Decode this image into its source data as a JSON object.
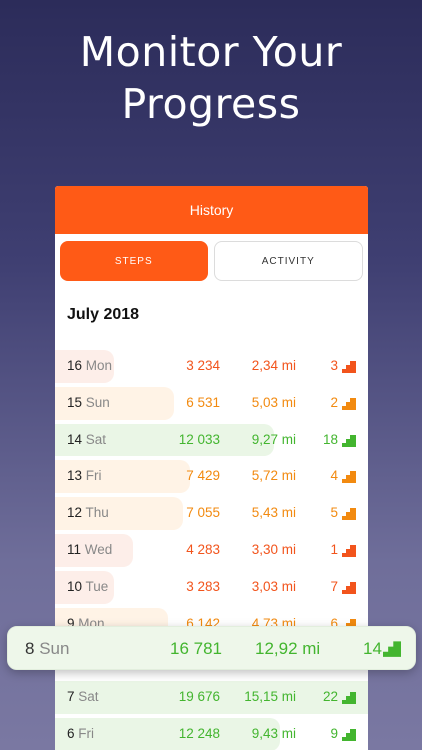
{
  "headline": {
    "line1": "Monitor Your",
    "line2": "Progress"
  },
  "appbar": {
    "title": "History"
  },
  "tabs": [
    {
      "label": "STEPS",
      "active": true
    },
    {
      "label": "ACTIVITY",
      "active": false
    }
  ],
  "month": "July 2018",
  "colors": {
    "accent": "#ff5a16",
    "red": "#f2541c",
    "orange": "#f28a10",
    "green": "#43b52f"
  },
  "days": [
    {
      "day": "16",
      "dow": "Mon",
      "steps": "3 234",
      "dist": "2,34 mi",
      "rank": "3",
      "level": "red",
      "fill": 0.19
    },
    {
      "day": "15",
      "dow": "Sun",
      "steps": "6 531",
      "dist": "5,03 mi",
      "rank": "2",
      "level": "orange",
      "fill": 0.38
    },
    {
      "day": "14",
      "dow": "Sat",
      "steps": "12 033",
      "dist": "9,27 mi",
      "rank": "18",
      "level": "green",
      "fill": 0.7
    },
    {
      "day": "13",
      "dow": "Fri",
      "steps": "7 429",
      "dist": "5,72 mi",
      "rank": "4",
      "level": "orange",
      "fill": 0.43
    },
    {
      "day": "12",
      "dow": "Thu",
      "steps": "7 055",
      "dist": "5,43 mi",
      "rank": "5",
      "level": "orange",
      "fill": 0.41
    },
    {
      "day": "11",
      "dow": "Wed",
      "steps": "4 283",
      "dist": "3,30 mi",
      "rank": "1",
      "level": "red",
      "fill": 0.25
    },
    {
      "day": "10",
      "dow": "Tue",
      "steps": "3 283",
      "dist": "3,03 mi",
      "rank": "7",
      "level": "red",
      "fill": 0.19
    },
    {
      "day": "9",
      "dow": "Mon",
      "steps": "6 142",
      "dist": "4,73 mi",
      "rank": "6",
      "level": "orange",
      "fill": 0.36
    },
    {
      "day": "8",
      "dow": "Sun",
      "steps": "",
      "dist": "",
      "rank": "",
      "level": "green",
      "fill": 0.0
    },
    {
      "day": "7",
      "dow": "Sat",
      "steps": "19 676",
      "dist": "15,15 mi",
      "rank": "22",
      "level": "green",
      "fill": 1.0
    },
    {
      "day": "6",
      "dow": "Fri",
      "steps": "12 248",
      "dist": "9,43 mi",
      "rank": "9",
      "level": "green",
      "fill": 0.72
    }
  ],
  "highlight": {
    "day": "8",
    "dow": "Sun",
    "steps": "16 781",
    "dist": "12,92 mi",
    "rank": "14",
    "level": "green"
  }
}
